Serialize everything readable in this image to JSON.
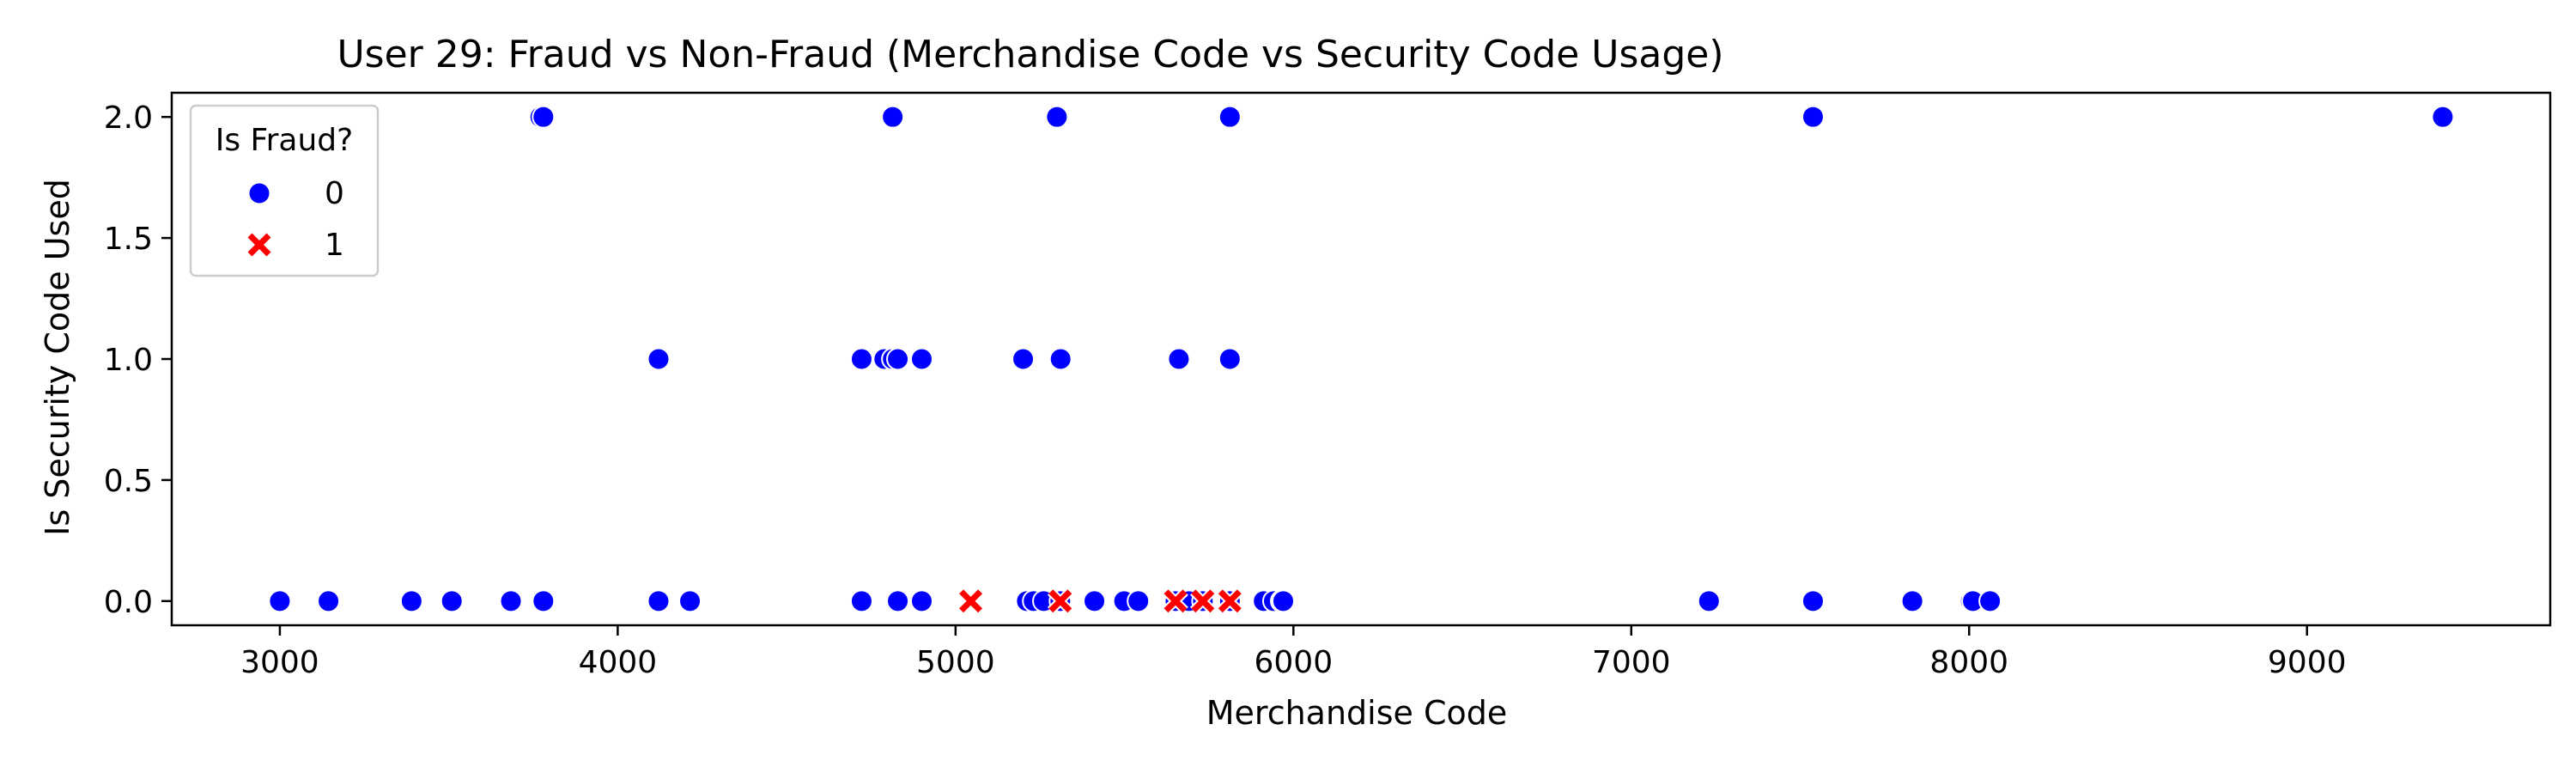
{
  "chart_data": {
    "type": "scatter",
    "title": "User 29: Fraud vs Non-Fraud (Merchandise Code vs Security Code Usage)",
    "xlabel": "Merchandise Code",
    "ylabel": "Is Security Code Used",
    "xlim": [
      2680,
      9720
    ],
    "ylim": [
      -0.1,
      2.1
    ],
    "xticks": [
      3000,
      4000,
      5000,
      6000,
      7000,
      8000,
      9000
    ],
    "yticks": [
      0.0,
      0.5,
      1.0,
      1.5,
      2.0
    ],
    "xtick_labels": [
      "3000",
      "4000",
      "5000",
      "6000",
      "7000",
      "8000",
      "9000"
    ],
    "ytick_labels": [
      "0.0",
      "0.5",
      "1.0",
      "1.5",
      "2.0"
    ],
    "grid": false,
    "legend": {
      "title": "Is Fraud?",
      "placement": "top-left"
    },
    "series": [
      {
        "name": "0",
        "marker": "circle",
        "color": "#0000ff",
        "points": [
          [
            3000,
            0
          ],
          [
            3144,
            0
          ],
          [
            3390,
            0
          ],
          [
            3509,
            0
          ],
          [
            3684,
            0
          ],
          [
            3780,
            0
          ],
          [
            4121,
            0
          ],
          [
            4214,
            0
          ],
          [
            4722,
            0
          ],
          [
            4829,
            0
          ],
          [
            4900,
            0
          ],
          [
            5211,
            0
          ],
          [
            5231,
            0
          ],
          [
            5261,
            0
          ],
          [
            5310,
            0
          ],
          [
            5411,
            0
          ],
          [
            5499,
            0
          ],
          [
            5541,
            0
          ],
          [
            5651,
            0
          ],
          [
            5691,
            0
          ],
          [
            5732,
            0
          ],
          [
            5812,
            0
          ],
          [
            5912,
            0
          ],
          [
            5942,
            0
          ],
          [
            5965,
            0
          ],
          [
            5970,
            0
          ],
          [
            7230,
            0
          ],
          [
            7538,
            0
          ],
          [
            7832,
            0
          ],
          [
            8005,
            0
          ],
          [
            8011,
            0
          ],
          [
            8062,
            0
          ],
          [
            4121,
            1
          ],
          [
            4722,
            1
          ],
          [
            4789,
            1
          ],
          [
            4814,
            1
          ],
          [
            4829,
            1
          ],
          [
            4900,
            1
          ],
          [
            5200,
            1
          ],
          [
            5311,
            1
          ],
          [
            5661,
            1
          ],
          [
            5812,
            1
          ],
          [
            3771,
            2
          ],
          [
            3780,
            2
          ],
          [
            4814,
            2
          ],
          [
            5300,
            2
          ],
          [
            5812,
            2
          ],
          [
            7538,
            2
          ],
          [
            9402,
            2
          ]
        ]
      },
      {
        "name": "1",
        "marker": "x",
        "color": "#ff0000",
        "points": [
          [
            5045,
            0
          ],
          [
            5310,
            0
          ],
          [
            5651,
            0
          ],
          [
            5732,
            0
          ],
          [
            5812,
            0
          ]
        ]
      }
    ]
  }
}
